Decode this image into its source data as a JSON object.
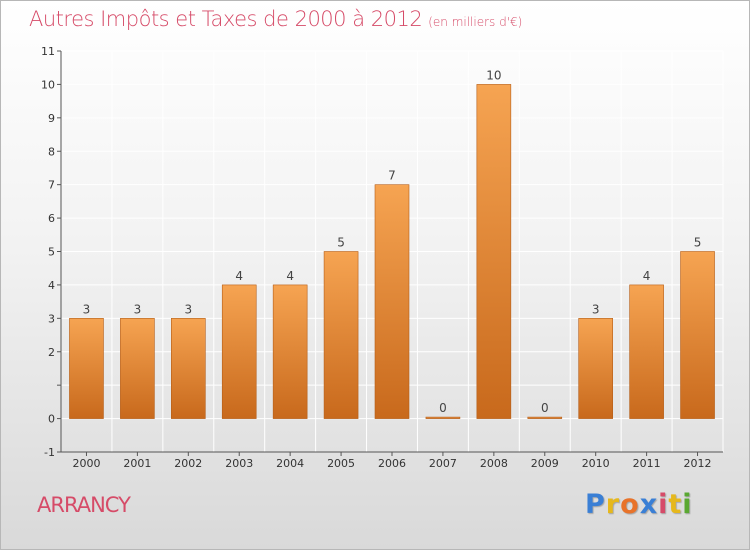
{
  "title": "Autres Impôts et Taxes de 2000 à 2012",
  "subtitle": "(en milliers d'€)",
  "place_label": "ARRANCY",
  "logo": {
    "text": "Proxiti",
    "colors": [
      "#3a7fd5",
      "#e6b81c",
      "#e8732a",
      "#3a7fd5",
      "#d64b68",
      "#e6b81c",
      "#5aa832"
    ]
  },
  "colors": {
    "bar_light": "#f6a452",
    "bar_dark": "#c8691c",
    "title": "#d64b68",
    "axis": "#555555"
  },
  "chart_data": {
    "type": "bar",
    "categories": [
      "2000",
      "2001",
      "2002",
      "2003",
      "2004",
      "2005",
      "2006",
      "2007",
      "2008",
      "2009",
      "2010",
      "2011",
      "2012"
    ],
    "values": [
      3,
      3,
      3,
      4,
      4,
      5,
      7,
      0,
      10,
      0,
      3,
      4,
      5
    ],
    "data_labels": [
      "3",
      "3",
      "3",
      "4",
      "4",
      "5",
      "7",
      "0",
      "10",
      "0",
      "3",
      "4",
      "5"
    ],
    "ylim": [
      -1,
      11
    ],
    "yticks": [
      -1,
      0,
      1,
      2,
      3,
      4,
      5,
      6,
      7,
      8,
      9,
      10,
      11
    ],
    "ytick_labels": [
      "-1",
      "0",
      "",
      "2",
      "3",
      "4",
      "5",
      "6",
      "7",
      "8",
      "9",
      "10",
      "11"
    ],
    "grid": true,
    "legend": "none",
    "title": "Autres Impôts et Taxes de 2000 à 2012",
    "xlabel": "",
    "ylabel": ""
  }
}
